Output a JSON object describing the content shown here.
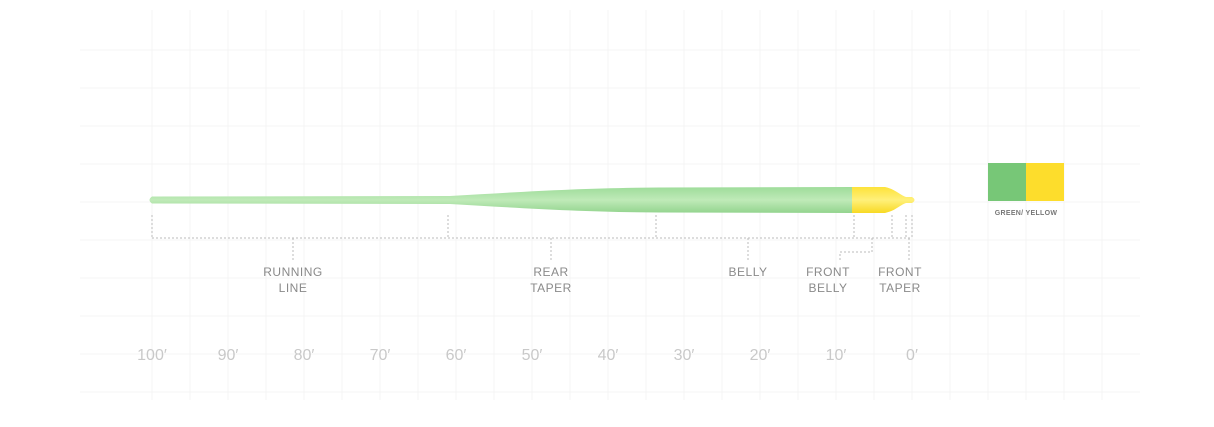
{
  "sections": [
    {
      "lines": [
        "RUNNING",
        "LINE"
      ]
    },
    {
      "lines": [
        "REAR",
        "TAPER"
      ]
    },
    {
      "lines": [
        "BELLY"
      ]
    },
    {
      "lines": [
        "FRONT",
        "BELLY"
      ]
    },
    {
      "lines": [
        "FRONT",
        "TAPER"
      ]
    }
  ],
  "scale": {
    "labels": [
      "100′",
      "90′",
      "80′",
      "70′",
      "60′",
      "50′",
      "40′",
      "30′",
      "20′",
      "10′",
      "0′"
    ]
  },
  "swatch": {
    "label": "GREEN/ YELLOW"
  }
}
